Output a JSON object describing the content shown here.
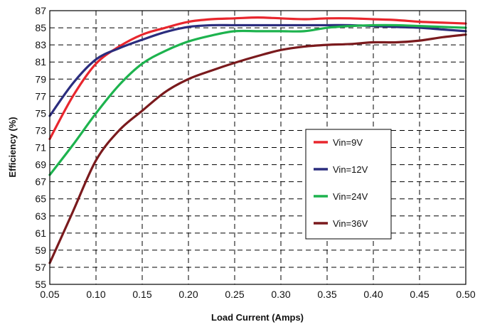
{
  "chart_data": {
    "type": "line",
    "title": "",
    "xlabel": "Load Current (Amps)",
    "ylabel": "Efficiency (%)",
    "xlim": [
      0.05,
      0.5
    ],
    "ylim": [
      55,
      87
    ],
    "x_ticks": [
      "0.05",
      "0.10",
      "0.15",
      "0.20",
      "0.25",
      "0.30",
      "0.35",
      "0.40",
      "0.45",
      "0.50"
    ],
    "y_ticks": [
      "55",
      "57",
      "59",
      "61",
      "63",
      "65",
      "67",
      "69",
      "71",
      "73",
      "75",
      "77",
      "79",
      "81",
      "83",
      "85",
      "87"
    ],
    "grid": true,
    "legend_position": "center-right",
    "series": [
      {
        "name": "Vin=9V",
        "color": "#e8262d",
        "points": [
          [
            0.05,
            72.0
          ],
          [
            0.075,
            77.0
          ],
          [
            0.1,
            80.8
          ],
          [
            0.125,
            82.8
          ],
          [
            0.15,
            84.2
          ],
          [
            0.175,
            85.0
          ],
          [
            0.2,
            85.7
          ],
          [
            0.225,
            86.0
          ],
          [
            0.25,
            86.1
          ],
          [
            0.275,
            86.2
          ],
          [
            0.3,
            86.1
          ],
          [
            0.325,
            86.0
          ],
          [
            0.35,
            86.1
          ],
          [
            0.375,
            86.1
          ],
          [
            0.4,
            86.0
          ],
          [
            0.425,
            85.9
          ],
          [
            0.45,
            85.7
          ],
          [
            0.475,
            85.6
          ],
          [
            0.5,
            85.5
          ]
        ]
      },
      {
        "name": "Vin=12V",
        "color": "#2b2d7e",
        "points": [
          [
            0.05,
            74.7
          ],
          [
            0.075,
            78.5
          ],
          [
            0.1,
            81.3
          ],
          [
            0.125,
            82.6
          ],
          [
            0.15,
            83.6
          ],
          [
            0.175,
            84.5
          ],
          [
            0.2,
            85.1
          ],
          [
            0.225,
            85.3
          ],
          [
            0.25,
            85.3
          ],
          [
            0.275,
            85.3
          ],
          [
            0.3,
            85.3
          ],
          [
            0.325,
            85.3
          ],
          [
            0.35,
            85.3
          ],
          [
            0.375,
            85.3
          ],
          [
            0.4,
            85.2
          ],
          [
            0.425,
            85.1
          ],
          [
            0.45,
            85.0
          ],
          [
            0.475,
            84.8
          ],
          [
            0.5,
            84.6
          ]
        ]
      },
      {
        "name": "Vin=24V",
        "color": "#1db34e",
        "points": [
          [
            0.05,
            67.8
          ],
          [
            0.075,
            71.3
          ],
          [
            0.1,
            75.0
          ],
          [
            0.125,
            78.3
          ],
          [
            0.15,
            80.8
          ],
          [
            0.175,
            82.3
          ],
          [
            0.2,
            83.4
          ],
          [
            0.225,
            84.1
          ],
          [
            0.25,
            84.6
          ],
          [
            0.275,
            84.6
          ],
          [
            0.3,
            84.6
          ],
          [
            0.325,
            84.6
          ],
          [
            0.35,
            85.0
          ],
          [
            0.375,
            85.2
          ],
          [
            0.4,
            85.3
          ],
          [
            0.425,
            85.3
          ],
          [
            0.45,
            85.2
          ],
          [
            0.475,
            85.1
          ],
          [
            0.5,
            85.0
          ]
        ]
      },
      {
        "name": "Vin=36V",
        "color": "#7a1a1d",
        "points": [
          [
            0.05,
            57.5
          ],
          [
            0.075,
            63.5
          ],
          [
            0.1,
            69.5
          ],
          [
            0.125,
            73.0
          ],
          [
            0.15,
            75.3
          ],
          [
            0.175,
            77.5
          ],
          [
            0.2,
            79.0
          ],
          [
            0.225,
            80.0
          ],
          [
            0.25,
            80.9
          ],
          [
            0.275,
            81.7
          ],
          [
            0.3,
            82.4
          ],
          [
            0.325,
            82.8
          ],
          [
            0.35,
            83.0
          ],
          [
            0.375,
            83.1
          ],
          [
            0.4,
            83.3
          ],
          [
            0.425,
            83.3
          ],
          [
            0.45,
            83.5
          ],
          [
            0.475,
            83.9
          ],
          [
            0.5,
            84.2
          ]
        ]
      }
    ]
  }
}
